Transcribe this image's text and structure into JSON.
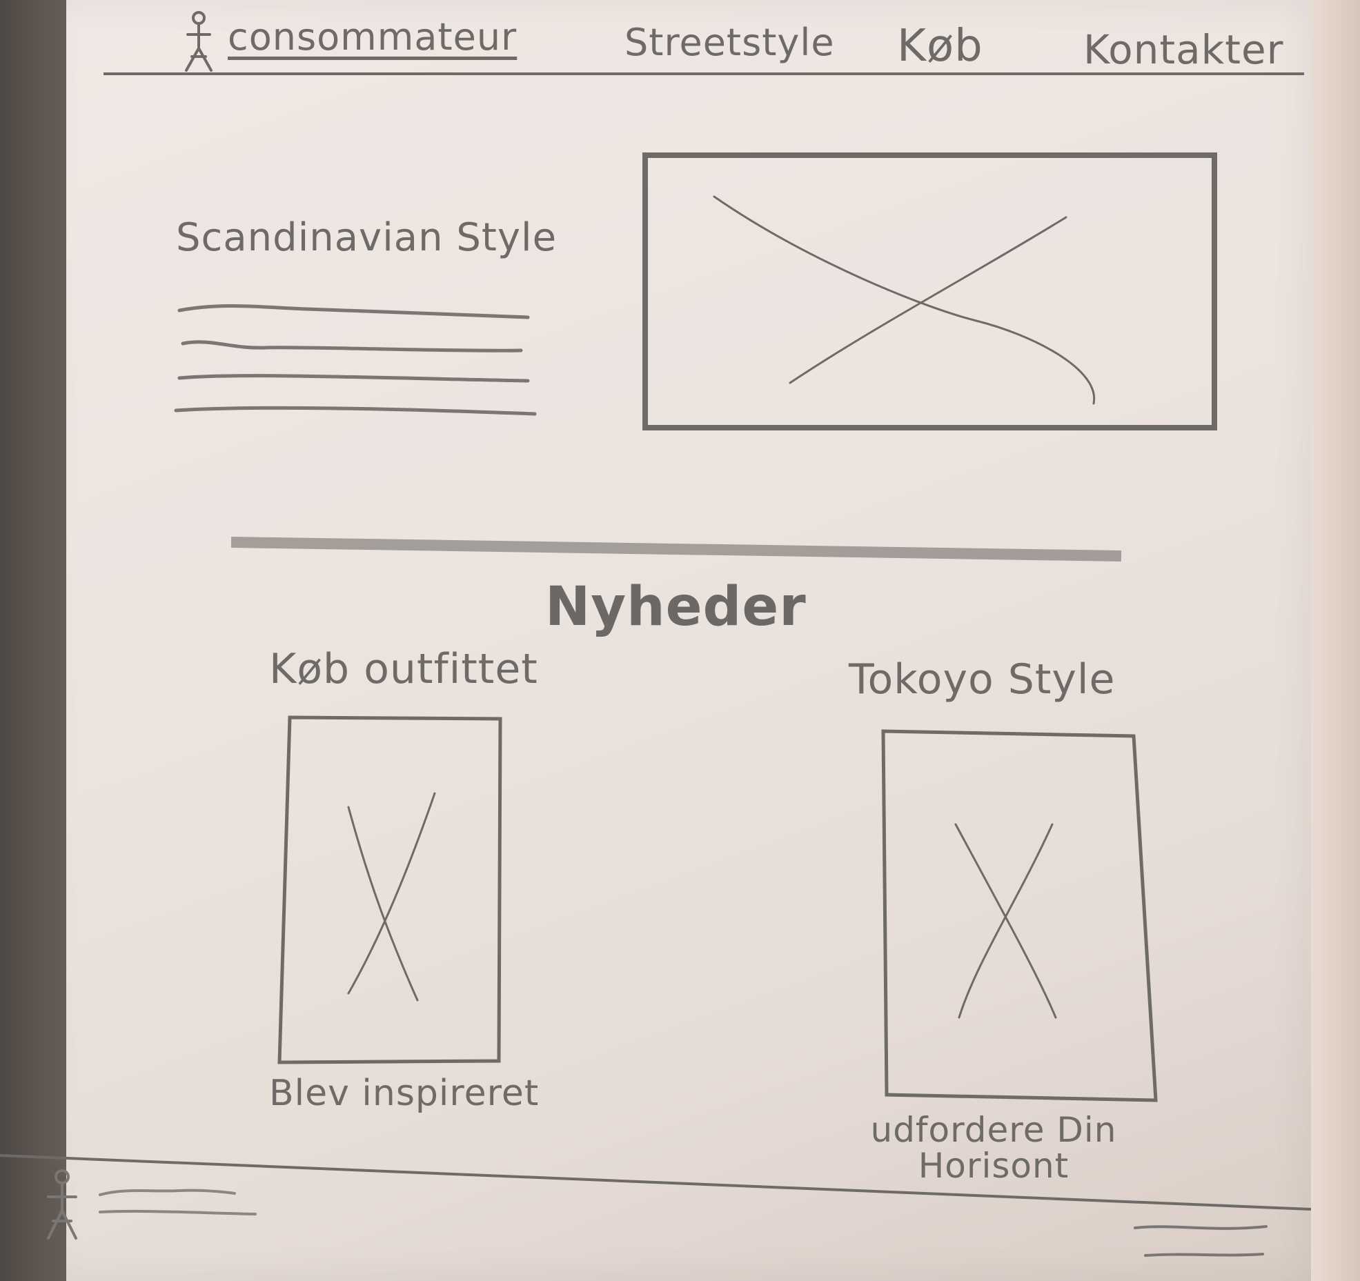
{
  "header": {
    "brand": "consommateur",
    "nav": [
      "Streetstyle",
      "Køb",
      "Kontakter"
    ]
  },
  "hero": {
    "title": "Scandinavian Style"
  },
  "section": {
    "title": "Nyheder"
  },
  "cards": [
    {
      "title": "Køb outfittet",
      "caption": "Blev inspireret"
    },
    {
      "title": "Tokoyo Style",
      "caption": "udfordere Din Horisont"
    }
  ],
  "colors": {
    "pencil": "#6e6a67",
    "paper": "#ece4df",
    "table": "#55504c"
  }
}
